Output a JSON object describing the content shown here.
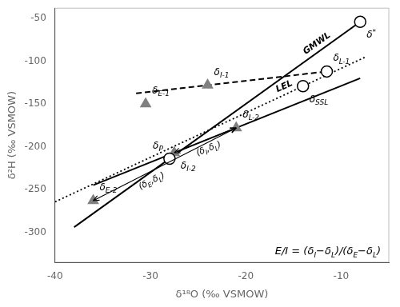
{
  "chart_data": {
    "type": "scatter",
    "xlabel": "δ¹⁸O (‰ VSMOW)",
    "ylabel": "δ²H (‰ VSMOW)",
    "xlim": [
      -40,
      -5
    ],
    "ylim": [
      -335,
      -38
    ],
    "xticks": [
      -40,
      -30,
      -20,
      -10
    ],
    "yticks": [
      -300,
      -250,
      -200,
      -150,
      -100,
      -50
    ],
    "grid": false,
    "series": [
      {
        "type": "line",
        "line_style": "solid",
        "color": "#000000",
        "annotation": "GMWL",
        "x": [
          -38,
          -7.5
        ],
        "values": [
          -294,
          -50
        ]
      },
      {
        "type": "line",
        "line_style": "dotted",
        "color": "#000000",
        "annotation": "LEL",
        "x": [
          -40,
          -7.5
        ],
        "values": [
          -264.4,
          -95.4
        ]
      },
      {
        "type": "line",
        "line_style": "dashed",
        "color": "#000000",
        "x": [
          -31.5,
          -11
        ],
        "values": [
          -137.6,
          -111.36
        ]
      },
      {
        "type": "line",
        "line_style": "solid",
        "color": "#000000",
        "x": [
          -36,
          -8
        ],
        "values": [
          -244.92307692307693,
          -120
        ]
      },
      {
        "type": "scatter",
        "marker": "open_circle",
        "color": "#000000",
        "x": [
          -8,
          -14,
          -28,
          -11.5
        ],
        "values": [
          -54,
          -129.2,
          -214,
          -112
        ],
        "labels": [
          "δ*",
          "δSSL",
          "δP",
          "δL-1"
        ]
      },
      {
        "type": "scatter",
        "marker": "triangle",
        "color": "#808080",
        "x": [
          -24,
          -30.5,
          -21,
          -27.5,
          -36
        ],
        "values": [
          -128,
          -150,
          -178,
          -207,
          -263
        ],
        "labels": [
          "δI-1",
          "δE-1",
          "δL-2",
          "δI-2",
          "δE-2"
        ]
      }
    ],
    "arrows": [
      {
        "from": [
          -27.5,
          -207
        ],
        "to": [
          -21,
          -178
        ],
        "label": "(δI,δL)"
      },
      {
        "from": [
          -36,
          -263
        ],
        "to": [
          -21,
          -178
        ],
        "label": "(δE,δL)"
      }
    ],
    "annotations": [
      "E/I = (δI−δL)/(δE−δL)"
    ]
  }
}
